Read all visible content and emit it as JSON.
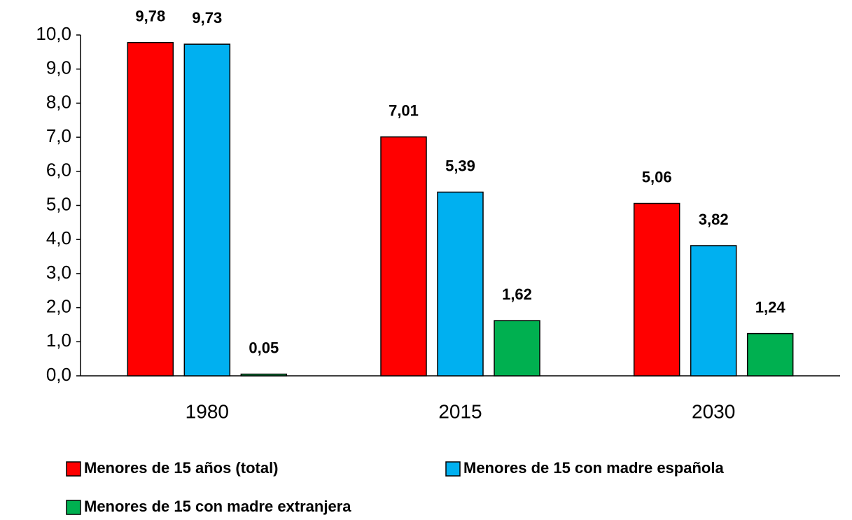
{
  "chart_data": {
    "type": "bar",
    "categories": [
      "1980",
      "2015",
      "2030"
    ],
    "series": [
      {
        "name": "Menores de 15 años (total)",
        "color": "#ff0000",
        "values": [
          9.78,
          7.01,
          5.06
        ],
        "value_labels": [
          "9,78",
          "7,01",
          "5,06"
        ]
      },
      {
        "name": "Menores de 15 con madre española",
        "color": "#00b0f0",
        "values": [
          9.73,
          5.39,
          3.82
        ],
        "value_labels": [
          "9,73",
          "5,39",
          "3,82"
        ]
      },
      {
        "name": "Menores de 15 con madre extranjera",
        "color": "#00b050",
        "values": [
          0.05,
          1.62,
          1.24
        ],
        "value_labels": [
          "0,05",
          "1,62",
          "1,24"
        ]
      }
    ],
    "ylim": [
      0,
      10
    ],
    "yticks": [
      {
        "value": 0,
        "label": "0,0"
      },
      {
        "value": 1,
        "label": "1,0"
      },
      {
        "value": 2,
        "label": "2,0"
      },
      {
        "value": 3,
        "label": "3,0"
      },
      {
        "value": 4,
        "label": "4,0"
      },
      {
        "value": 5,
        "label": "5,0"
      },
      {
        "value": 6,
        "label": "6,0"
      },
      {
        "value": 7,
        "label": "7,0"
      },
      {
        "value": 8,
        "label": "8,0"
      },
      {
        "value": 9,
        "label": "9,0"
      },
      {
        "value": 10,
        "label": "10,0"
      }
    ],
    "grid": false,
    "legend": "bottom"
  }
}
